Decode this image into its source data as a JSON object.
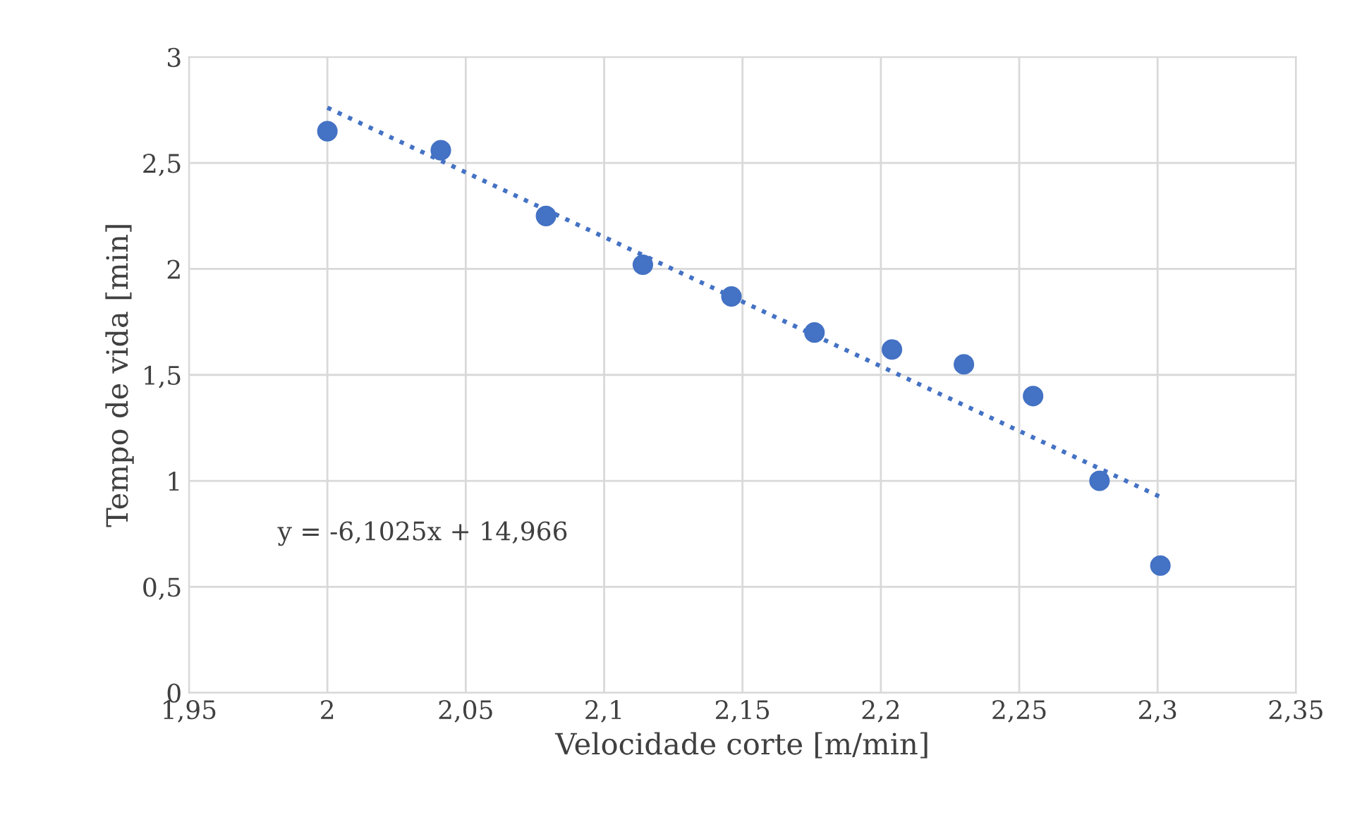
{
  "chart_data": {
    "type": "scatter",
    "xlabel": "Velocidade corte [m/min]",
    "ylabel": "Tempo de vida [min]",
    "xlim": [
      1.95,
      2.35
    ],
    "xticks": [
      {
        "value": 1.95,
        "label": "1,95"
      },
      {
        "value": 2,
        "label": "2"
      },
      {
        "value": 2.05,
        "label": "2,05"
      },
      {
        "value": 2.1,
        "label": "2,1"
      },
      {
        "value": 2.15,
        "label": "2,15"
      },
      {
        "value": 2.2,
        "label": "2,2"
      },
      {
        "value": 2.25,
        "label": "2,25"
      },
      {
        "value": 2.3,
        "label": "2,3"
      },
      {
        "value": 2.35,
        "label": "2,35"
      }
    ],
    "ylim": [
      0,
      3
    ],
    "yticks": [
      0,
      {
        "value": 0.5,
        "label": "0,5"
      },
      1,
      {
        "value": 1.5,
        "label": "1,5"
      },
      2,
      {
        "value": 2.5,
        "label": "2,5"
      },
      3
    ],
    "grid": true,
    "legend": false,
    "series": [
      {
        "color": "#4472c4",
        "marker": "circle",
        "x": [
          2.0,
          2.041,
          2.079,
          2.114,
          2.146,
          2.176,
          2.204,
          2.23,
          2.255,
          2.279,
          2.301
        ],
        "values": [
          2.65,
          2.56,
          2.25,
          2.02,
          1.87,
          1.7,
          1.62,
          1.55,
          1.4,
          1.0,
          0.6
        ]
      },
      {
        "type": "line",
        "color": "#4472c4",
        "line_style": "dotted",
        "marker": "none",
        "x": [
          2.0,
          2.301
        ],
        "values": [
          2.761,
          0.924
        ]
      }
    ],
    "annotations": [
      "y = -6,1025x + 14,966"
    ]
  }
}
